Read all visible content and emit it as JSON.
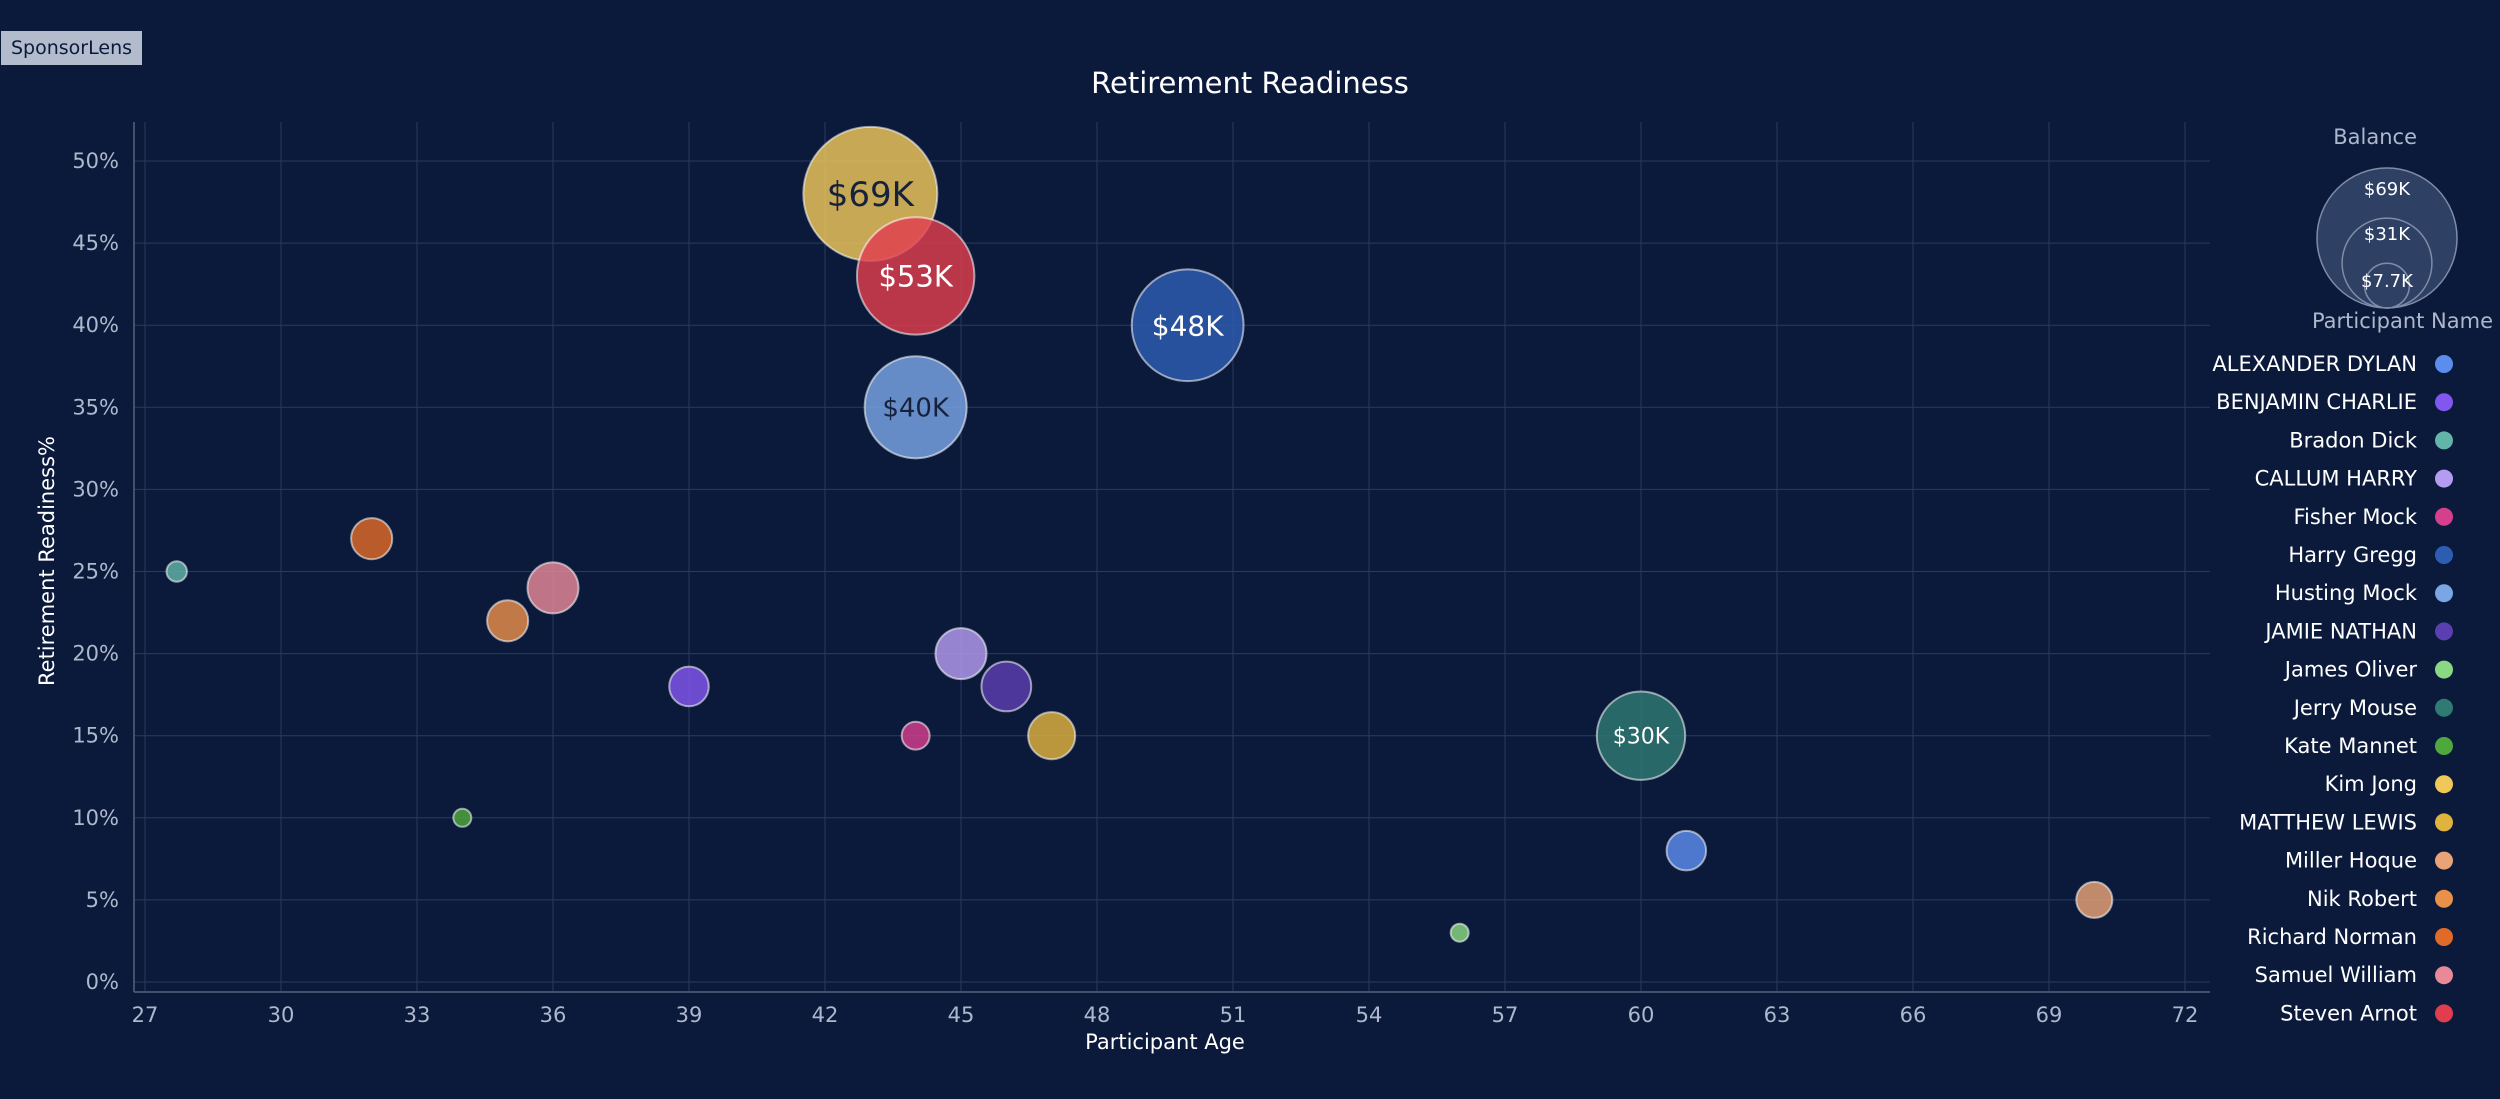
{
  "app": {
    "badge": "SponsorLens"
  },
  "chart_data": {
    "type": "scatter",
    "title": "Retirement Readiness",
    "xlabel": "Participant Age",
    "ylabel": "Retirement Readiness%",
    "xlim": [
      27,
      72
    ],
    "ylim": [
      0,
      50
    ],
    "x_ticks": [
      27,
      30,
      33,
      36,
      39,
      42,
      45,
      48,
      51,
      54,
      57,
      60,
      63,
      66,
      69,
      72
    ],
    "y_ticks": [
      0,
      5,
      10,
      15,
      20,
      25,
      30,
      35,
      40,
      45,
      50
    ],
    "y_tick_labels": [
      "0%",
      "5%",
      "10%",
      "15%",
      "20%",
      "25%",
      "30%",
      "35%",
      "40%",
      "45%",
      "50%"
    ],
    "grid": true,
    "size_legend": {
      "title": "Balance",
      "entries": [
        {
          "label": "$69K",
          "value": 69000
        },
        {
          "label": "$31K",
          "value": 31000
        },
        {
          "label": "$7.7K",
          "value": 7700
        }
      ]
    },
    "color_legend_title": "Participant Name",
    "legend_position": "right",
    "points": [
      {
        "name": "ALEXANDER DYLAN",
        "color": "#5b8def",
        "age": 61,
        "readiness": 8,
        "balance": 6000
      },
      {
        "name": "BENJAMIN CHARLIE",
        "color": "#8257f0",
        "age": 39,
        "readiness": 18,
        "balance": 6000
      },
      {
        "name": "Bradon Dick",
        "color": "#62b5a8",
        "age": 27.7,
        "readiness": 25,
        "balance": 1600
      },
      {
        "name": "CALLUM HARRY",
        "color": "#b59cf3",
        "age": 45,
        "readiness": 20,
        "balance": 10000
      },
      {
        "name": "Fisher Mock",
        "color": "#d63f8e",
        "age": 44,
        "readiness": 15,
        "balance": 3000
      },
      {
        "name": "Harry Gregg",
        "color": "#2d5db3",
        "age": 50,
        "readiness": 40,
        "balance": 48000,
        "label": "$48K"
      },
      {
        "name": "Husting Mock",
        "color": "#7aa6e6",
        "age": 44,
        "readiness": 35,
        "balance": 40000,
        "label": "$40K"
      },
      {
        "name": "JAMIE NATHAN",
        "color": "#5b3eb0",
        "age": 46,
        "readiness": 18,
        "balance": 9500
      },
      {
        "name": "James Oliver",
        "color": "#8ad982",
        "age": 56,
        "readiness": 3,
        "balance": 700
      },
      {
        "name": "Jerry Mouse",
        "color": "#2f7a73",
        "age": 60,
        "readiness": 15,
        "balance": 30000,
        "label": "$30K"
      },
      {
        "name": "Kate Mannet",
        "color": "#4fa83d",
        "age": 34,
        "readiness": 10,
        "balance": 800
      },
      {
        "name": "Kim Jong",
        "color": "#f0c85a",
        "age": 43,
        "readiness": 48,
        "balance": 69000,
        "label": "$69K"
      },
      {
        "name": "MATTHEW LEWIS",
        "color": "#e0b33e",
        "age": 47,
        "readiness": 15,
        "balance": 8500
      },
      {
        "name": "Miller Hoque",
        "color": "#e8a476",
        "age": 70,
        "readiness": 5,
        "balance": 5000
      },
      {
        "name": "Nik Robert",
        "color": "#e9904a",
        "age": 35,
        "readiness": 22,
        "balance": 6500
      },
      {
        "name": "Richard Norman",
        "color": "#e06a28",
        "age": 32,
        "readiness": 27,
        "balance": 6500
      },
      {
        "name": "Samuel William",
        "color": "#e8899a",
        "age": 36,
        "readiness": 24,
        "balance": 10000
      },
      {
        "name": "Steven Arnot",
        "color": "#e03e4e",
        "age": 44,
        "readiness": 43,
        "balance": 53000,
        "label": "$53K"
      }
    ]
  }
}
